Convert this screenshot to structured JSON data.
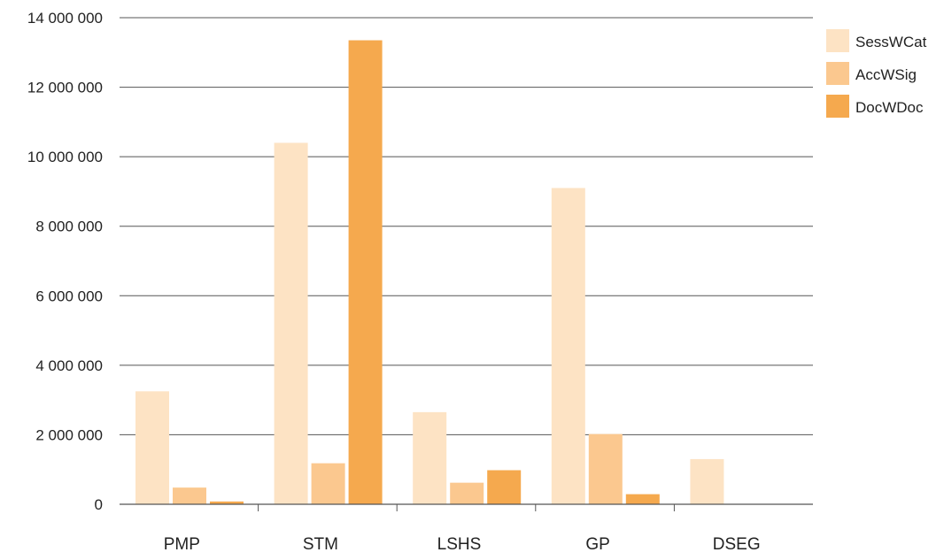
{
  "chart_data": {
    "type": "bar",
    "title": "",
    "xlabel": "",
    "ylabel": "",
    "categories": [
      "PMP",
      "STM",
      "LSHS",
      "GP",
      "DSEG"
    ],
    "series": [
      {
        "name": "SessWCat",
        "color": "#fde3c4",
        "values": [
          3250000,
          10400000,
          2650000,
          9100000,
          1300000
        ]
      },
      {
        "name": "AccWSig",
        "color": "#fbc88f",
        "values": [
          480000,
          1180000,
          620000,
          2020000,
          0
        ]
      },
      {
        "name": "DocWDoc",
        "color": "#f5a94e",
        "values": [
          80000,
          13350000,
          980000,
          290000,
          0
        ]
      }
    ],
    "ylim": [
      0,
      14000000
    ],
    "yticks": [
      0,
      2000000,
      4000000,
      6000000,
      8000000,
      10000000,
      12000000,
      14000000
    ],
    "ytick_labels": [
      "0",
      "2 000 000",
      "4 000 000",
      "6 000 000",
      "8 000 000",
      "10 000 000",
      "12 000 000",
      "14 000 000"
    ],
    "grid": "horizontal",
    "legend_position": "top-right",
    "gridline_color": "#555555"
  }
}
